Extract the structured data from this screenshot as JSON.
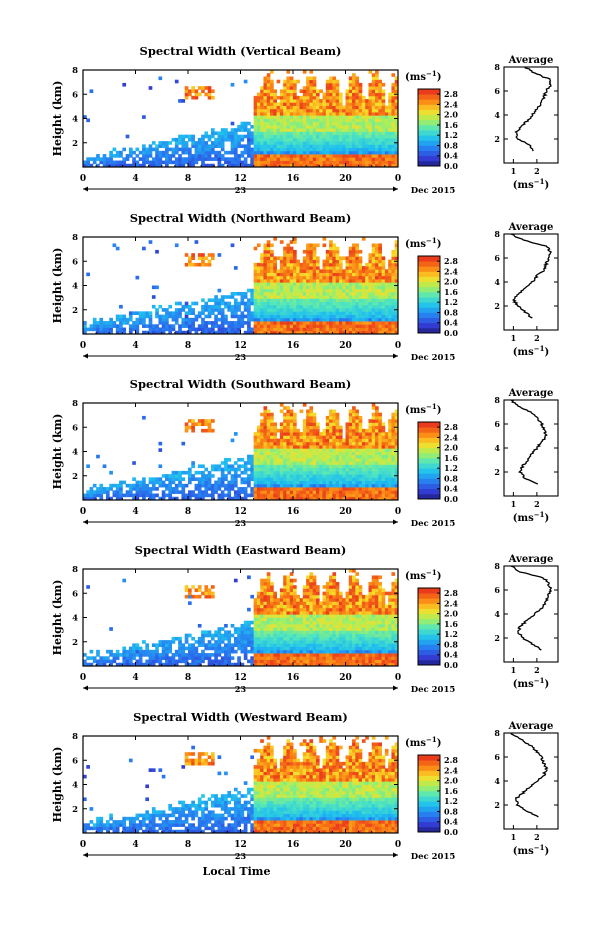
{
  "figure": {
    "xlabel_bottom": "Local Time",
    "ylabel": "Height (km)",
    "unit_label": "(ms",
    "unit_exp": "−1",
    "date_label": "Dec 2015",
    "day_label": "23",
    "profile_title": "Average"
  },
  "chart_data": [
    {
      "type": "heatmap",
      "title": "Spectral Width (Vertical Beam)",
      "xlabel": "",
      "ylabel": "Height (km)",
      "xlim": [
        0,
        24
      ],
      "ylim": [
        0,
        8
      ],
      "x_ticks": [
        "0",
        "4",
        "8",
        "12",
        "16",
        "20",
        "0"
      ],
      "y_ticks": [
        "2",
        "4",
        "6",
        "8"
      ],
      "colorbar": {
        "label": "(ms−1)",
        "range": [
          0,
          3.0
        ],
        "ticks": [
          "0.0",
          "0.4",
          "0.8",
          "1.2",
          "1.6",
          "2.0",
          "2.4",
          "2.8"
        ]
      },
      "profile": {
        "title": "Average",
        "xlabel": "(ms−1)",
        "x_ticks": [
          "1",
          "2"
        ],
        "y_ticks": [
          "2",
          "4",
          "6",
          "8"
        ],
        "xlim": [
          0.6,
          2.9
        ],
        "height_km": [
          1.0,
          1.5,
          2.0,
          2.5,
          3.0,
          3.5,
          4.0,
          4.5,
          5.0,
          5.5,
          6.0,
          6.5,
          7.0,
          7.5,
          8.0
        ],
        "width_ms": [
          1.9,
          1.7,
          1.2,
          1.1,
          1.3,
          1.6,
          1.8,
          2.0,
          2.2,
          2.3,
          2.4,
          2.6,
          2.5,
          1.9,
          1.5
        ]
      }
    },
    {
      "type": "heatmap",
      "title": "Spectral Width (Northward Beam)",
      "xlabel": "",
      "ylabel": "Height (km)",
      "xlim": [
        0,
        24
      ],
      "ylim": [
        0,
        8
      ],
      "x_ticks": [
        "0",
        "4",
        "8",
        "12",
        "16",
        "20",
        "0"
      ],
      "y_ticks": [
        "2",
        "4",
        "6",
        "8"
      ],
      "colorbar": {
        "label": "(ms−1)",
        "range": [
          0,
          3.0
        ],
        "ticks": [
          "0.0",
          "0.4",
          "0.8",
          "1.2",
          "1.6",
          "2.0",
          "2.4",
          "2.8"
        ]
      },
      "profile": {
        "title": "Average",
        "xlabel": "(ms−1)",
        "x_ticks": [
          "1",
          "2"
        ],
        "y_ticks": [
          "2",
          "4",
          "6",
          "8"
        ],
        "xlim": [
          0.6,
          2.9
        ],
        "height_km": [
          1.0,
          1.5,
          2.0,
          2.5,
          3.0,
          3.5,
          4.0,
          4.5,
          5.0,
          5.5,
          6.0,
          6.5,
          7.0,
          7.5,
          8.0
        ],
        "width_ms": [
          1.8,
          1.5,
          1.2,
          1.0,
          1.2,
          1.5,
          1.8,
          2.0,
          2.3,
          2.4,
          2.5,
          2.6,
          2.4,
          1.4,
          0.9
        ]
      }
    },
    {
      "type": "heatmap",
      "title": "Spectral Width (Southward Beam)",
      "xlabel": "",
      "ylabel": "Height (km)",
      "xlim": [
        0,
        24
      ],
      "ylim": [
        0,
        8
      ],
      "x_ticks": [
        "0",
        "4",
        "8",
        "12",
        "16",
        "20",
        "0"
      ],
      "y_ticks": [
        "2",
        "4",
        "6",
        "8"
      ],
      "colorbar": {
        "label": "(ms−1)",
        "range": [
          0,
          3.0
        ],
        "ticks": [
          "0.0",
          "0.4",
          "0.8",
          "1.2",
          "1.6",
          "2.0",
          "2.4",
          "2.8"
        ]
      },
      "profile": {
        "title": "Average",
        "xlabel": "(ms−1)",
        "x_ticks": [
          "1",
          "2"
        ],
        "y_ticks": [
          "2",
          "4",
          "6",
          "8"
        ],
        "xlim": [
          0.6,
          2.9
        ],
        "height_km": [
          1.0,
          1.5,
          2.0,
          2.5,
          3.0,
          3.5,
          4.0,
          4.5,
          5.0,
          5.5,
          6.0,
          6.5,
          7.0,
          7.5,
          8.0
        ],
        "width_ms": [
          2.0,
          1.5,
          1.3,
          1.4,
          1.6,
          1.8,
          2.0,
          2.2,
          2.4,
          2.3,
          2.2,
          2.0,
          1.7,
          1.2,
          0.9
        ]
      }
    },
    {
      "type": "heatmap",
      "title": "Spectral Width (Eastward Beam)",
      "xlabel": "",
      "ylabel": "Height (km)",
      "xlim": [
        0,
        24
      ],
      "ylim": [
        0,
        8
      ],
      "x_ticks": [
        "0",
        "4",
        "8",
        "12",
        "16",
        "20",
        "0"
      ],
      "y_ticks": [
        "2",
        "4",
        "6",
        "8"
      ],
      "colorbar": {
        "label": "(ms−1)",
        "range": [
          0,
          3.0
        ],
        "ticks": [
          "0.0",
          "0.4",
          "0.8",
          "1.2",
          "1.6",
          "2.0",
          "2.4",
          "2.8"
        ]
      },
      "profile": {
        "title": "Average",
        "xlabel": "(ms−1)",
        "x_ticks": [
          "1",
          "2"
        ],
        "y_ticks": [
          "2",
          "4",
          "6",
          "8"
        ],
        "xlim": [
          0.6,
          2.9
        ],
        "height_km": [
          1.0,
          1.5,
          2.0,
          2.5,
          3.0,
          3.5,
          4.0,
          4.5,
          5.0,
          5.5,
          6.0,
          6.5,
          7.0,
          7.5,
          8.0
        ],
        "width_ms": [
          2.2,
          1.8,
          1.4,
          1.2,
          1.3,
          1.6,
          1.9,
          2.2,
          2.4,
          2.5,
          2.6,
          2.5,
          2.3,
          1.3,
          0.9
        ]
      }
    },
    {
      "type": "heatmap",
      "title": "Spectral Width (Westward Beam)",
      "xlabel": "Local Time",
      "ylabel": "Height (km)",
      "xlim": [
        0,
        24
      ],
      "ylim": [
        0,
        8
      ],
      "x_ticks": [
        "0",
        "4",
        "8",
        "12",
        "16",
        "20",
        "0"
      ],
      "y_ticks": [
        "2",
        "4",
        "6",
        "8"
      ],
      "colorbar": {
        "label": "(ms−1)",
        "range": [
          0,
          3.0
        ],
        "ticks": [
          "0.0",
          "0.4",
          "0.8",
          "1.2",
          "1.6",
          "2.0",
          "2.4",
          "2.8"
        ]
      },
      "profile": {
        "title": "Average",
        "xlabel": "(ms−1)",
        "x_ticks": [
          "1",
          "2"
        ],
        "y_ticks": [
          "2",
          "4",
          "6",
          "8"
        ],
        "xlim": [
          0.6,
          2.9
        ],
        "height_km": [
          1.0,
          1.5,
          2.0,
          2.5,
          3.0,
          3.5,
          4.0,
          4.5,
          5.0,
          5.5,
          6.0,
          6.5,
          7.0,
          7.5,
          8.0
        ],
        "width_ms": [
          2.1,
          1.6,
          1.2,
          1.1,
          1.4,
          1.7,
          2.0,
          2.3,
          2.4,
          2.3,
          2.2,
          2.0,
          1.7,
          1.3,
          0.9
        ]
      }
    }
  ]
}
